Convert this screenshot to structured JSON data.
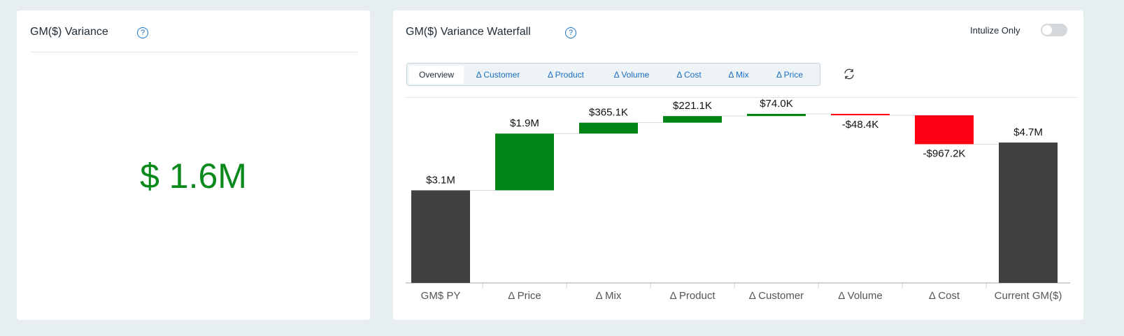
{
  "left_card": {
    "title": "GM($) Variance",
    "help_icon": "?",
    "value": "$ 1.6M"
  },
  "right_card": {
    "title": "GM($) Variance Waterfall",
    "help_icon": "?",
    "toggle_label": "Intulize Only",
    "tabs": [
      "Overview",
      "Δ Customer",
      "Δ Product",
      "Δ Volume",
      "Δ Cost",
      "Δ Mix",
      "Δ Price"
    ]
  },
  "chart_data": {
    "type": "waterfall",
    "categories": [
      "GM$ PY",
      "Δ Price",
      "Δ Mix",
      "Δ Product",
      "Δ Customer",
      "Δ Volume",
      "Δ Cost",
      "Current GM($)"
    ],
    "values": [
      3100000,
      1900000,
      365100,
      221100,
      74000,
      -48400,
      -967200,
      4700000
    ],
    "value_labels": [
      "$3.1M",
      "$1.9M",
      "$365.1K",
      "$221.1K",
      "$74.0K",
      "-$48.4K",
      "-$967.2K",
      "$4.7M"
    ],
    "colors": {
      "total": "#404040",
      "increase": "#008416",
      "decrease": "#ff0015"
    }
  }
}
